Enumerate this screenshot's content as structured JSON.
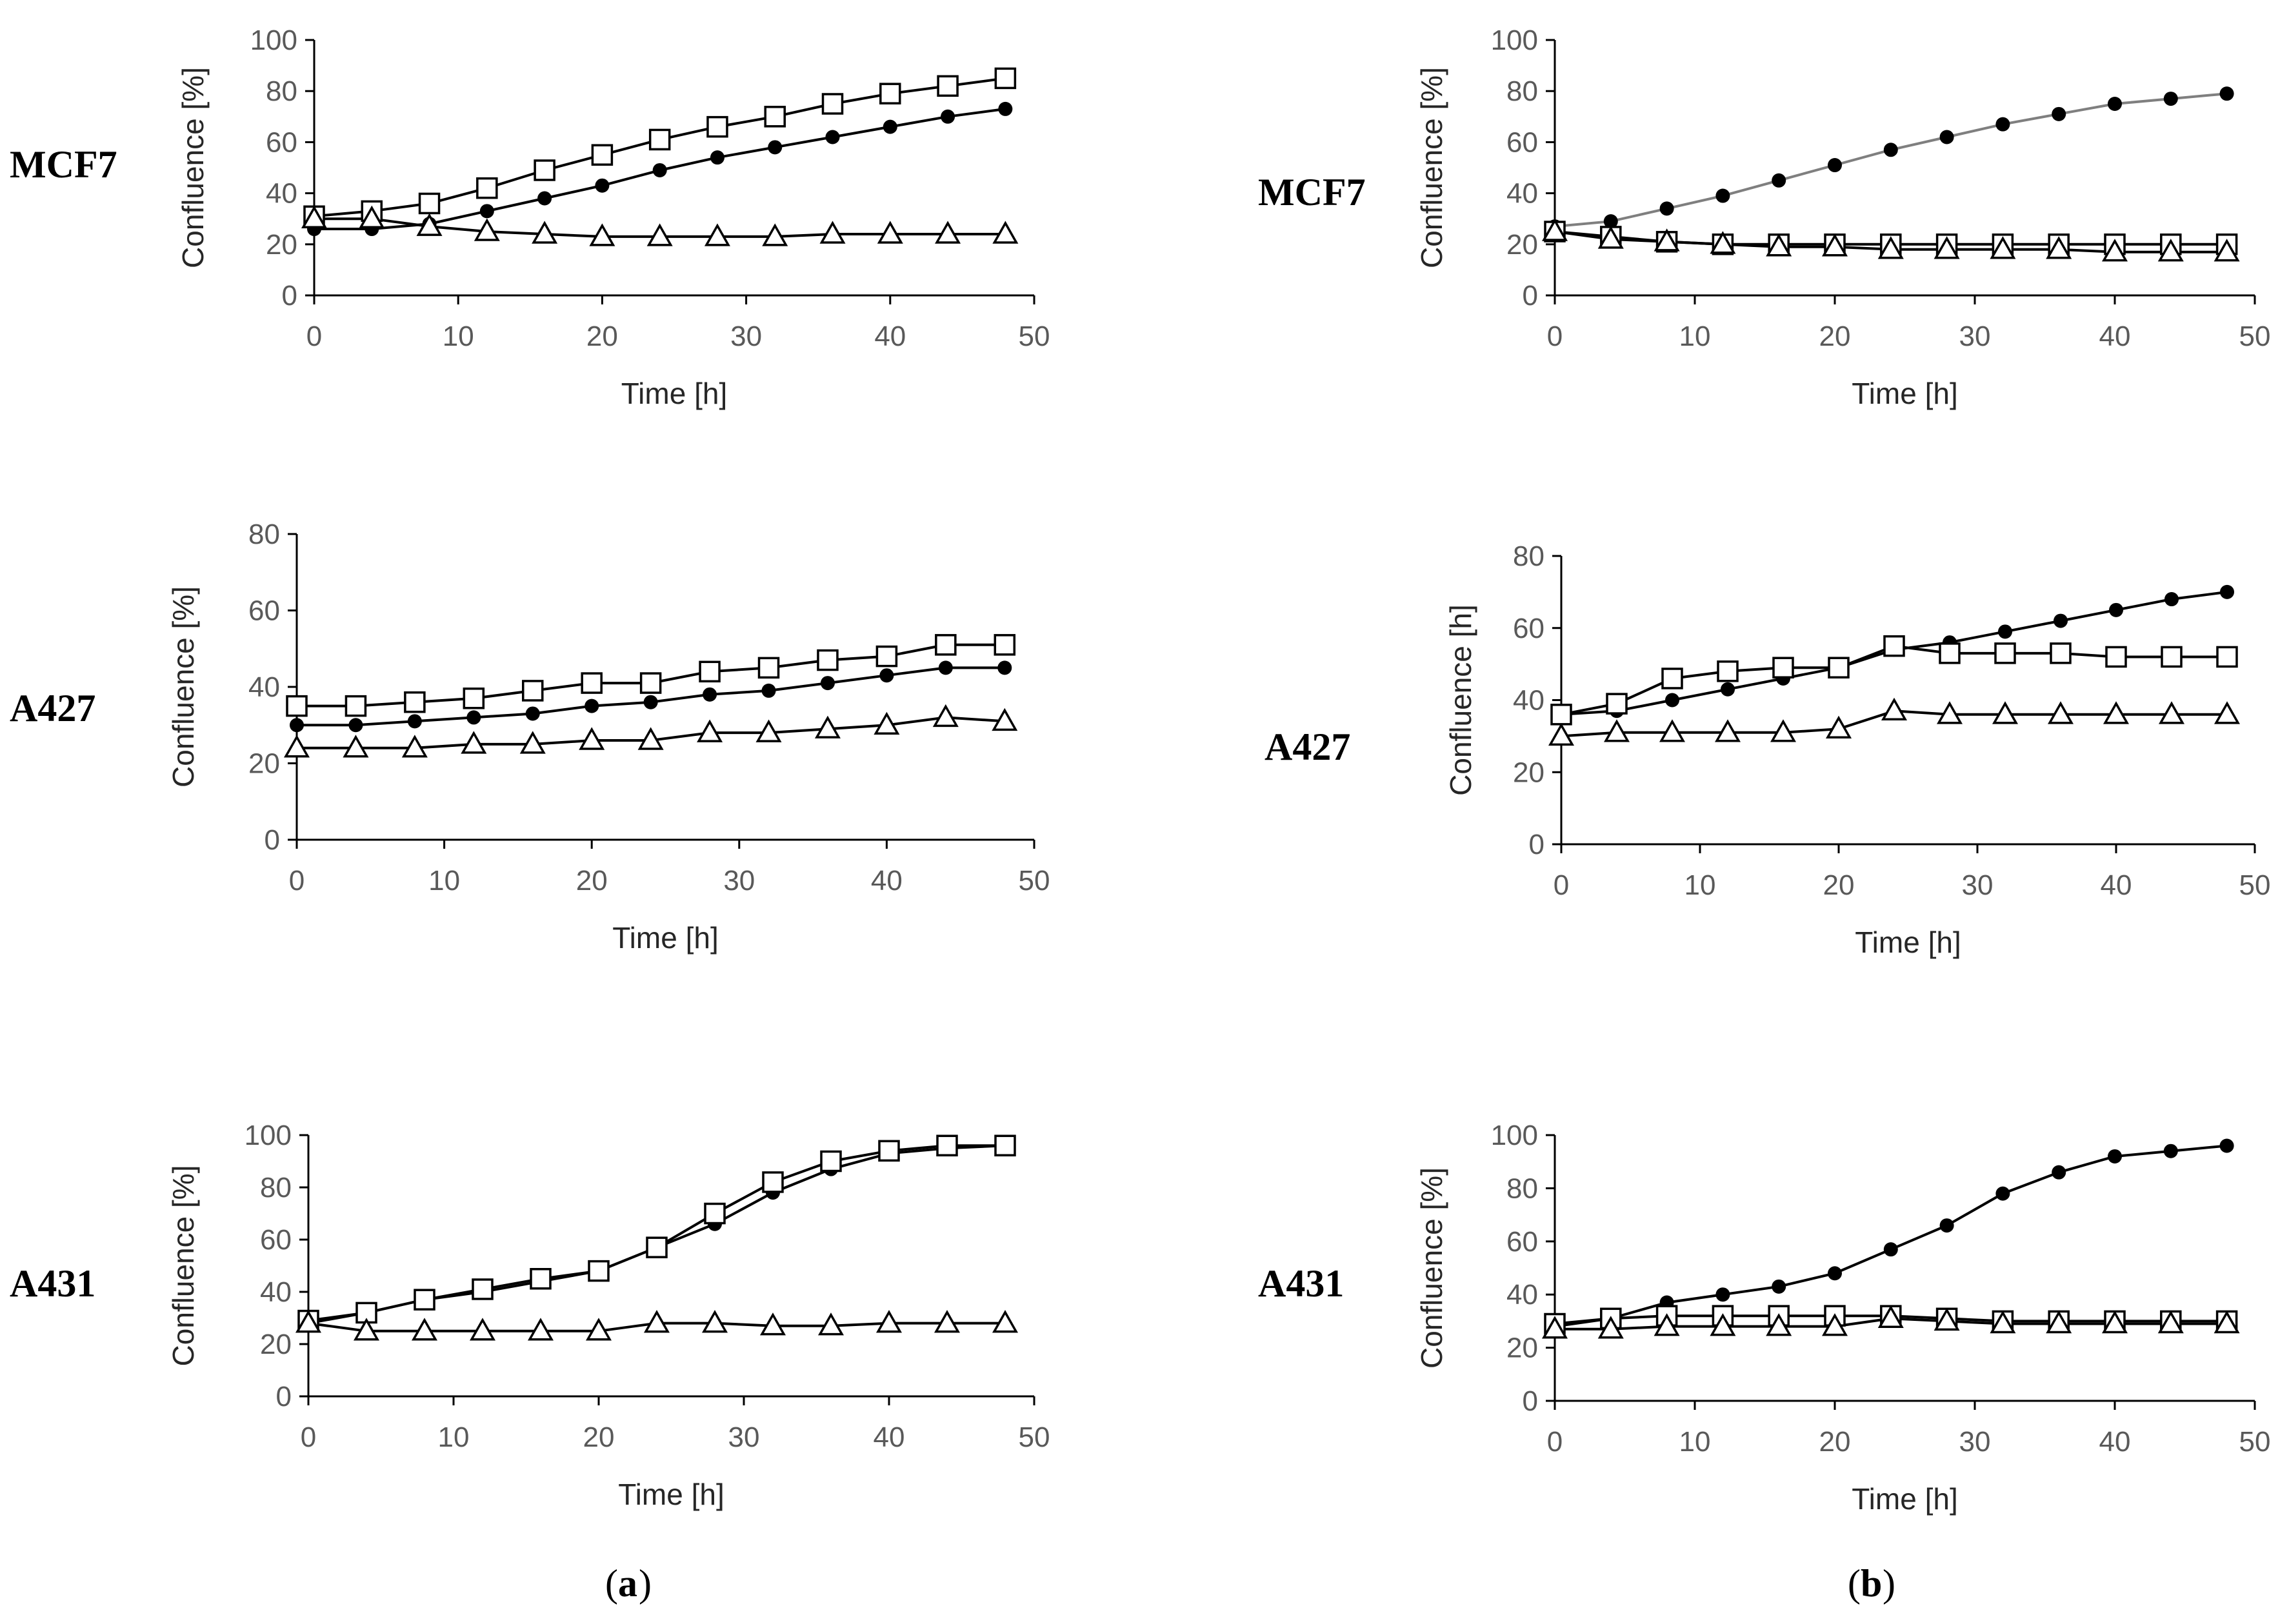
{
  "row_labels": [
    "MCF7",
    "A427",
    "A431"
  ],
  "panel_labels": [
    "a",
    "b"
  ],
  "chart_data": [
    {
      "type": "line",
      "panel": "a",
      "cell_line": "MCF7",
      "xlabel": "Time [h]",
      "ylabel": "Confluence [%]",
      "xlim": [
        0,
        50
      ],
      "ylim": [
        0,
        100
      ],
      "xticks": [
        0,
        10,
        20,
        30,
        40,
        50
      ],
      "yticks": [
        0,
        20,
        40,
        60,
        80,
        100
      ],
      "x": [
        0,
        4,
        8,
        12,
        16,
        20,
        24,
        28,
        32,
        36,
        40,
        44,
        48
      ],
      "series": [
        {
          "marker": "square-open",
          "values": [
            31,
            33,
            36,
            42,
            49,
            55,
            61,
            66,
            70,
            75,
            79,
            82,
            85
          ]
        },
        {
          "marker": "circle-filled",
          "values": [
            26,
            26,
            28,
            33,
            38,
            43,
            49,
            54,
            58,
            62,
            66,
            70,
            73
          ]
        },
        {
          "marker": "triangle-open",
          "values": [
            30,
            30,
            27,
            25,
            24,
            23,
            23,
            23,
            23,
            24,
            24,
            24,
            24
          ]
        }
      ]
    },
    {
      "type": "line",
      "panel": "b",
      "cell_line": "MCF7",
      "xlabel": "Time [h]",
      "ylabel": "Confluence [%]",
      "xlim": [
        0,
        50
      ],
      "ylim": [
        0,
        100
      ],
      "xticks": [
        0,
        10,
        20,
        30,
        40,
        50
      ],
      "yticks": [
        0,
        20,
        40,
        60,
        80,
        100
      ],
      "x": [
        0,
        4,
        8,
        12,
        16,
        20,
        24,
        28,
        32,
        36,
        40,
        44,
        48
      ],
      "series": [
        {
          "marker": "circle-filled",
          "line_color": "#7f7f7f",
          "values": [
            27,
            29,
            34,
            39,
            45,
            51,
            57,
            62,
            67,
            71,
            75,
            77,
            79
          ]
        },
        {
          "marker": "square-open",
          "values": [
            25,
            23,
            21,
            20,
            20,
            20,
            20,
            20,
            20,
            20,
            20,
            20,
            20
          ]
        },
        {
          "marker": "triangle-open",
          "values": [
            25,
            22,
            21,
            20,
            19,
            19,
            18,
            18,
            18,
            18,
            17,
            17,
            17
          ]
        }
      ]
    },
    {
      "type": "line",
      "panel": "a",
      "cell_line": "A427",
      "xlabel": "Time [h]",
      "ylabel": "Confluence [%]",
      "xlim": [
        0,
        50
      ],
      "ylim": [
        0,
        80
      ],
      "xticks": [
        0,
        10,
        20,
        30,
        40,
        50
      ],
      "yticks": [
        0,
        20,
        40,
        60,
        80
      ],
      "x": [
        0,
        4,
        8,
        12,
        16,
        20,
        24,
        28,
        32,
        36,
        40,
        44,
        48
      ],
      "series": [
        {
          "marker": "square-open",
          "values": [
            35,
            35,
            36,
            37,
            39,
            41,
            41,
            44,
            45,
            47,
            48,
            51,
            51
          ]
        },
        {
          "marker": "circle-filled",
          "values": [
            30,
            30,
            31,
            32,
            33,
            35,
            36,
            38,
            39,
            41,
            43,
            45,
            45
          ]
        },
        {
          "marker": "triangle-open",
          "values": [
            24,
            24,
            24,
            25,
            25,
            26,
            26,
            28,
            28,
            29,
            30,
            32,
            31
          ]
        }
      ]
    },
    {
      "type": "line",
      "panel": "b",
      "cell_line": "A427",
      "xlabel": "Time [h]",
      "ylabel": "Confluence [h]",
      "xlim": [
        0,
        50
      ],
      "ylim": [
        0,
        80
      ],
      "xticks": [
        0,
        10,
        20,
        30,
        40,
        50
      ],
      "yticks": [
        0,
        20,
        40,
        60,
        80
      ],
      "x": [
        0,
        4,
        8,
        12,
        16,
        20,
        24,
        28,
        32,
        36,
        40,
        44,
        48
      ],
      "series": [
        {
          "marker": "circle-filled",
          "values": [
            36,
            37,
            40,
            43,
            46,
            49,
            54,
            56,
            59,
            62,
            65,
            68,
            70
          ]
        },
        {
          "marker": "square-open",
          "values": [
            36,
            39,
            46,
            48,
            49,
            49,
            55,
            53,
            53,
            53,
            52,
            52,
            52
          ]
        },
        {
          "marker": "triangle-open",
          "values": [
            30,
            31,
            31,
            31,
            31,
            32,
            37,
            36,
            36,
            36,
            36,
            36,
            36
          ]
        }
      ]
    },
    {
      "type": "line",
      "panel": "a",
      "cell_line": "A431",
      "xlabel": "Time [h]",
      "ylabel": "Confluence [%]",
      "xlim": [
        0,
        50
      ],
      "ylim": [
        0,
        100
      ],
      "xticks": [
        0,
        10,
        20,
        30,
        40,
        50
      ],
      "yticks": [
        0,
        20,
        40,
        60,
        80,
        100
      ],
      "x": [
        0,
        4,
        8,
        12,
        16,
        20,
        24,
        28,
        32,
        36,
        40,
        44,
        48
      ],
      "series": [
        {
          "marker": "circle-filled",
          "values": [
            28,
            32,
            37,
            40,
            44,
            48,
            57,
            66,
            78,
            87,
            93,
            95,
            96
          ]
        },
        {
          "marker": "square-open",
          "values": [
            29,
            32,
            37,
            41,
            45,
            48,
            57,
            70,
            82,
            90,
            94,
            96,
            96
          ]
        },
        {
          "marker": "triangle-open",
          "values": [
            28,
            25,
            25,
            25,
            25,
            25,
            28,
            28,
            27,
            27,
            28,
            28,
            28
          ]
        }
      ]
    },
    {
      "type": "line",
      "panel": "b",
      "cell_line": "A431",
      "xlabel": "Time [h]",
      "ylabel": "Confluence [%]",
      "xlim": [
        0,
        50
      ],
      "ylim": [
        0,
        100
      ],
      "xticks": [
        0,
        10,
        20,
        30,
        40,
        50
      ],
      "yticks": [
        0,
        20,
        40,
        60,
        80,
        100
      ],
      "x": [
        0,
        4,
        8,
        12,
        16,
        20,
        24,
        28,
        32,
        36,
        40,
        44,
        48
      ],
      "series": [
        {
          "marker": "circle-filled",
          "values": [
            28,
            31,
            37,
            40,
            43,
            48,
            57,
            66,
            78,
            86,
            92,
            94,
            96
          ]
        },
        {
          "marker": "square-open",
          "values": [
            29,
            31,
            32,
            32,
            32,
            32,
            32,
            31,
            30,
            30,
            30,
            30,
            30
          ]
        },
        {
          "marker": "triangle-open",
          "values": [
            27,
            27,
            28,
            28,
            28,
            28,
            31,
            30,
            29,
            29,
            29,
            29,
            29
          ]
        }
      ]
    }
  ]
}
